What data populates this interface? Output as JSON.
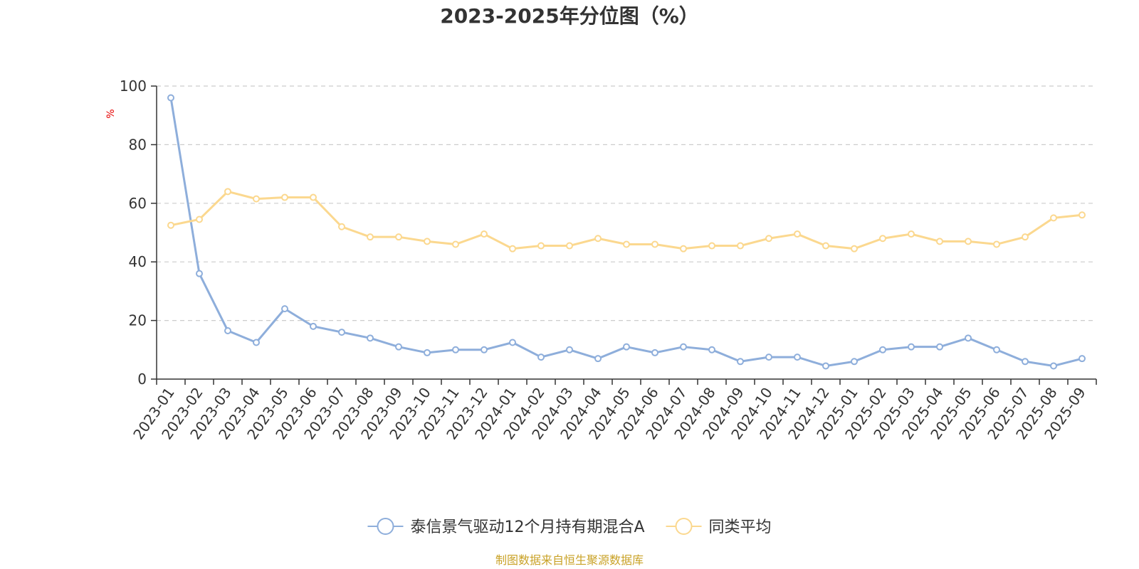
{
  "chart_data": {
    "type": "line",
    "title": "2023-2025年分位图（%）",
    "ylabel": "%",
    "ylim": [
      0,
      100
    ],
    "yticks": [
      0,
      20,
      40,
      60,
      80,
      100
    ],
    "grid": true,
    "legend_position": "bottom",
    "categories": [
      "2023-01",
      "2023-02",
      "2023-03",
      "2023-04",
      "2023-05",
      "2023-06",
      "2023-07",
      "2023-08",
      "2023-09",
      "2023-10",
      "2023-11",
      "2023-12",
      "2024-01",
      "2024-02",
      "2024-03",
      "2024-04",
      "2024-05",
      "2024-06",
      "2024-07",
      "2024-08",
      "2024-09",
      "2024-10",
      "2024-11",
      "2024-12",
      "2025-01",
      "2025-02",
      "2025-03",
      "2025-04",
      "2025-05",
      "2025-06",
      "2025-07",
      "2025-08",
      "2025-09"
    ],
    "series": [
      {
        "name": "泰信景气驱动12个月持有期混合A",
        "color": "#8eaedb",
        "values": [
          96,
          36,
          16.5,
          12.5,
          24,
          18,
          16,
          14,
          11,
          9,
          10,
          10,
          12.5,
          7.5,
          10,
          7,
          11,
          9,
          11,
          10,
          6,
          7.5,
          7.5,
          4.5,
          6,
          10,
          11,
          11,
          14,
          10,
          6,
          4.5,
          7
        ]
      },
      {
        "name": "同类平均",
        "color": "#fbd88f",
        "values": [
          52.5,
          54.5,
          64,
          61.5,
          62,
          62,
          52,
          48.5,
          48.5,
          47,
          46,
          49.5,
          44.5,
          45.5,
          45.5,
          48,
          46,
          46,
          44.5,
          45.5,
          45.5,
          48,
          49.5,
          45.5,
          44.5,
          48,
          49.5,
          47,
          47,
          46,
          48.5,
          55,
          56
        ]
      }
    ],
    "unit_color": "#e60000"
  },
  "footer": {
    "source": "制图数据来自恒生聚源数据库",
    "source_color": "#c9a227"
  }
}
